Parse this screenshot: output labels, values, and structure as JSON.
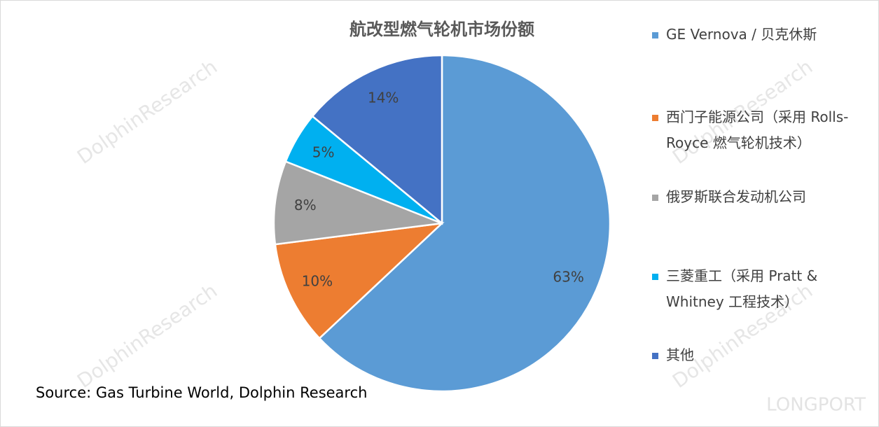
{
  "chart_data": {
    "type": "pie",
    "title": "航改型燃气轮机市场份额",
    "categories": [
      "GE Vernova / 贝克休斯",
      "西门子能源公司（采用 Rolls-Royce 燃气轮机技术）",
      "俄罗斯联合发动机公司",
      "三菱重工（采用 Pratt & Whitney 工程技术）",
      "其他"
    ],
    "values": [
      63,
      10,
      8,
      5,
      14
    ],
    "value_labels": [
      "63%",
      "10%",
      "8%",
      "5%",
      "14%"
    ],
    "colors": [
      "#5b9bd5",
      "#ed7d31",
      "#a5a5a5",
      "#00b0f0",
      "#4472c4"
    ],
    "legend": "right",
    "source": "Source: Gas Turbine World, Dolphin Research",
    "watermarks": [
      "DolphinResearch",
      "LONGPORT"
    ]
  }
}
